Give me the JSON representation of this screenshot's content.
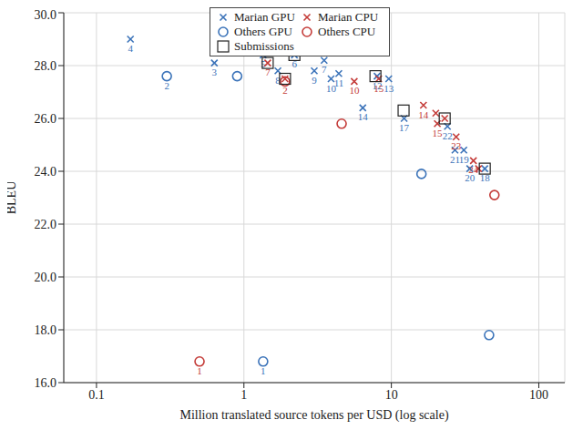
{
  "chart_data": {
    "type": "scatter",
    "x_label": "Million translated source tokens per USD (log scale)",
    "y_label": "BLEU",
    "log": "x",
    "grid": true,
    "legend": "top",
    "xlim": [
      0.06,
      150
    ],
    "xticks": [
      0.1,
      1,
      10,
      100
    ],
    "ylim": [
      16,
      30
    ],
    "yticks": [
      {
        "value": 16,
        "label": "16.0"
      },
      {
        "value": 18,
        "label": "18.0"
      },
      {
        "value": 20,
        "label": "20.0"
      },
      {
        "value": 22,
        "label": "22.0"
      },
      {
        "value": 24,
        "label": "24.0"
      },
      {
        "value": 26,
        "label": "26.0"
      },
      {
        "value": 28,
        "label": "28.0"
      },
      {
        "value": 30,
        "label": "30.0"
      }
    ],
    "series": [
      {
        "name": "Marian GPU",
        "color": "#3b73b9",
        "marker": "cross",
        "x": [
          0.17,
          0.63,
          1.35,
          1.7,
          2.2,
          3.0,
          3.5,
          3.9,
          4.4,
          6.4,
          8.0,
          9.6,
          12.2,
          24,
          27,
          31,
          34,
          43
        ],
        "values": [
          29.0,
          28.1,
          28.4,
          27.8,
          28.4,
          27.8,
          28.2,
          27.5,
          27.7,
          26.4,
          27.6,
          27.5,
          26.0,
          25.7,
          24.8,
          24.8,
          24.1,
          24.1
        ],
        "labels": [
          "4",
          "3",
          "5",
          "8",
          "6",
          "9",
          "7",
          "10",
          "11",
          "14",
          "12",
          "13",
          "17",
          "22",
          "21",
          "19",
          "20",
          "18"
        ]
      },
      {
        "name": "Marian CPU",
        "color": "#c43c39",
        "marker": "cross",
        "x": [
          1.45,
          1.9,
          5.6,
          8.2,
          16.5,
          20,
          20.5,
          23,
          27.5,
          36,
          39
        ],
        "values": [
          28.1,
          27.5,
          27.4,
          27.5,
          26.5,
          26.2,
          25.8,
          26.0,
          25.3,
          24.4,
          24.1
        ],
        "labels": [
          "7",
          null,
          "10",
          "15",
          "14",
          null,
          "15",
          null,
          "23",
          "24",
          null
        ]
      },
      {
        "name": "Others GPU",
        "color": "#3b73b9",
        "marker": "circle",
        "x": [
          0.3,
          0.9,
          1.35,
          16,
          46
        ],
        "values": [
          27.6,
          27.6,
          16.8,
          23.9,
          17.8
        ],
        "labels": [
          "2",
          null,
          "1",
          null,
          null
        ]
      },
      {
        "name": "Others CPU",
        "color": "#c43c39",
        "marker": "circle",
        "x": [
          0.5,
          1.9,
          4.6,
          50
        ],
        "values": [
          16.8,
          27.4,
          25.8,
          23.1
        ],
        "labels": [
          "1",
          "2",
          null,
          null
        ]
      },
      {
        "name": "Submissions",
        "color": "#222222",
        "marker": "square",
        "x": [
          1.45,
          1.9,
          2.2,
          7.8,
          12.1,
          23,
          43
        ],
        "values": [
          28.1,
          27.5,
          28.4,
          27.6,
          26.3,
          26.0,
          24.1
        ],
        "labels": [
          null,
          null,
          null,
          null,
          null,
          null,
          null
        ]
      }
    ]
  }
}
